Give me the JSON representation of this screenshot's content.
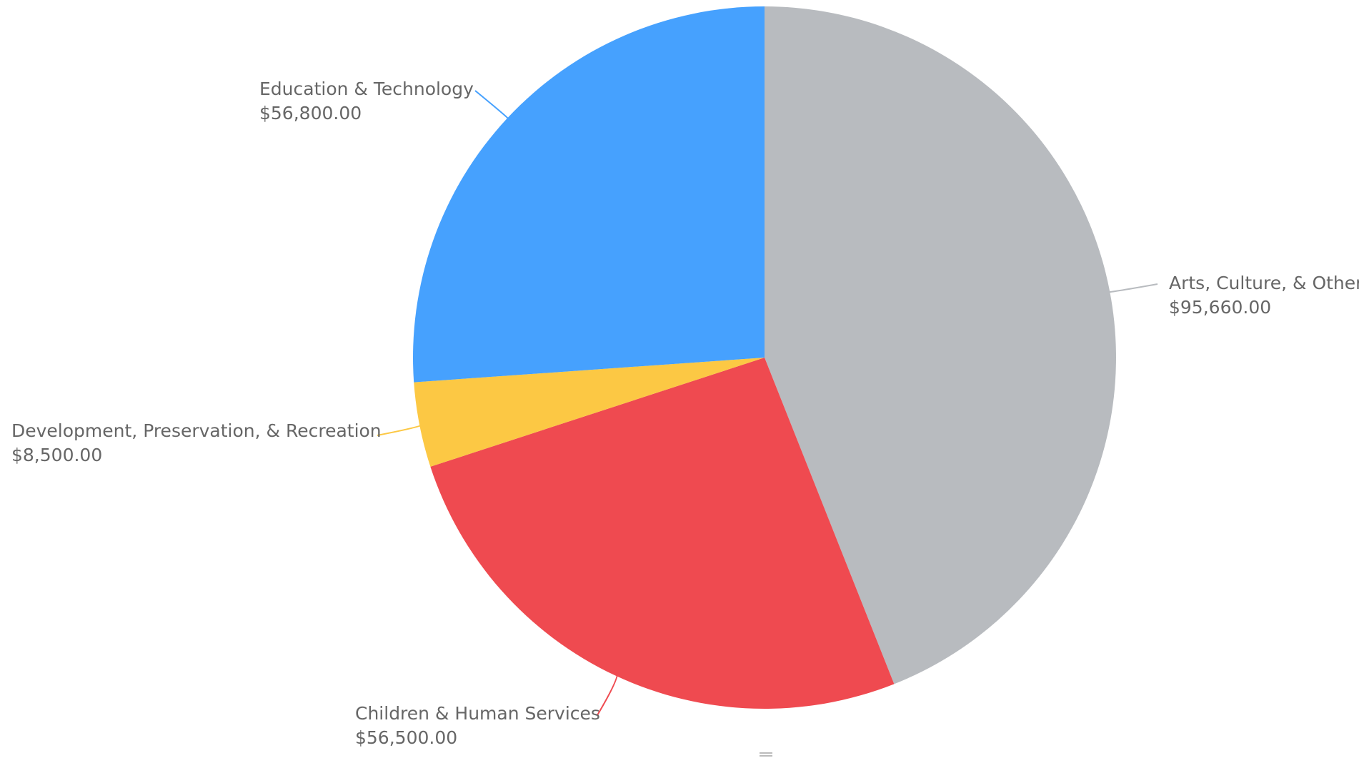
{
  "chart_data": {
    "type": "pie",
    "title": "",
    "slices": [
      {
        "label": "Arts, Culture, & Other",
        "value": 95660,
        "value_label": "$95,660.00",
        "color": "#b8bbbf"
      },
      {
        "label": "Children & Human Services",
        "value": 56500,
        "value_label": "$56,500.00",
        "color": "#ef4a50"
      },
      {
        "label": "Development, Preservation, & Recreation",
        "value": 8500,
        "value_label": "$8,500.00",
        "color": "#fcc844"
      },
      {
        "label": "Education & Technology",
        "value": 56800,
        "value_label": "$56,800.00",
        "color": "#46a1fe"
      }
    ],
    "start_angle": "top",
    "direction": "clockwise",
    "legend": "none",
    "labels": "outside-with-leader-lines",
    "label_color": "#666666"
  }
}
